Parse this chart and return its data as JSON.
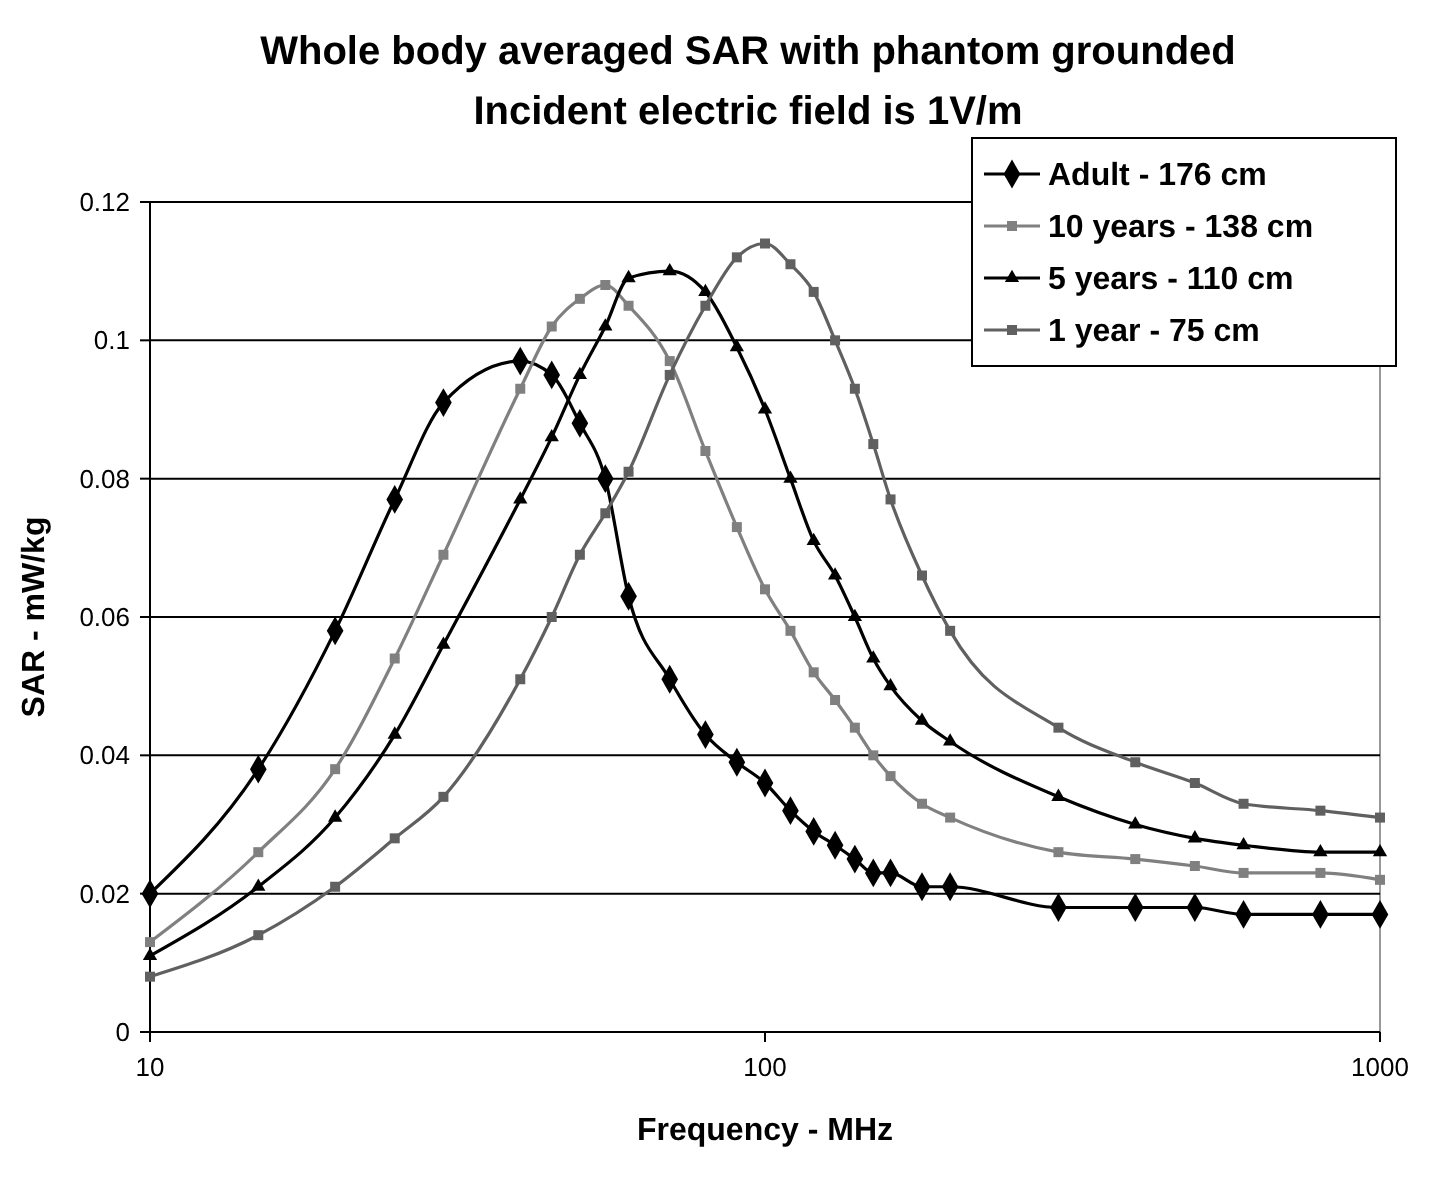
{
  "chart_data": {
    "type": "line",
    "title": "Whole body averaged SAR with phantom grounded",
    "subtitle": "Incident electric field is 1V/m",
    "xlabel": "Frequency - MHz",
    "ylabel": "SAR - mW/kg",
    "log": "x",
    "x": [
      10,
      15,
      20,
      25,
      30,
      40,
      45,
      50,
      55,
      60,
      70,
      80,
      90,
      100,
      110,
      120,
      130,
      140,
      150,
      160,
      180,
      200,
      300,
      400,
      500,
      600,
      800,
      1000
    ],
    "xlim": [
      10,
      1000
    ],
    "xticks": [
      10,
      100,
      1000
    ],
    "ylim": [
      0,
      0.12
    ],
    "yticks": [
      0,
      0.02,
      0.04,
      0.06,
      0.08,
      0.1,
      0.12
    ],
    "grid": "y",
    "legend": "top right",
    "line_style": "solid",
    "series": [
      {
        "name": "Adult - 176 cm",
        "color": "#000000",
        "marker": "diamond",
        "values": [
          0.02,
          0.038,
          0.058,
          0.077,
          0.091,
          0.097,
          0.095,
          0.088,
          0.08,
          0.063,
          0.051,
          0.043,
          0.039,
          0.036,
          0.032,
          0.029,
          0.027,
          0.025,
          0.023,
          0.023,
          0.021,
          0.021,
          0.018,
          0.018,
          0.018,
          0.017,
          0.017,
          0.017
        ]
      },
      {
        "name": "10 years - 138 cm",
        "color": "#808080",
        "marker": "square",
        "values": [
          0.013,
          0.026,
          0.038,
          0.054,
          0.069,
          0.093,
          0.102,
          0.106,
          0.108,
          0.105,
          0.097,
          0.084,
          0.073,
          0.064,
          0.058,
          0.052,
          0.048,
          0.044,
          0.04,
          0.037,
          0.033,
          0.031,
          0.026,
          0.025,
          0.024,
          0.023,
          0.023,
          0.022
        ]
      },
      {
        "name": "5 years - 110 cm",
        "color": "#000000",
        "marker": "triangle",
        "values": [
          0.011,
          0.021,
          0.031,
          0.043,
          0.056,
          0.077,
          0.086,
          0.095,
          0.102,
          0.109,
          0.11,
          0.107,
          0.099,
          0.09,
          0.08,
          0.071,
          0.066,
          0.06,
          0.054,
          0.05,
          0.045,
          0.042,
          0.034,
          0.03,
          0.028,
          0.027,
          0.026,
          0.026
        ]
      },
      {
        "name": "1 year - 75 cm",
        "color": "#606060",
        "marker": "square",
        "values": [
          0.008,
          0.014,
          0.021,
          0.028,
          0.034,
          0.051,
          0.06,
          0.069,
          0.075,
          0.081,
          0.095,
          0.105,
          0.112,
          0.114,
          0.111,
          0.107,
          0.1,
          0.093,
          0.085,
          0.077,
          0.066,
          0.058,
          0.044,
          0.039,
          0.036,
          0.033,
          0.032,
          0.031
        ]
      }
    ]
  }
}
